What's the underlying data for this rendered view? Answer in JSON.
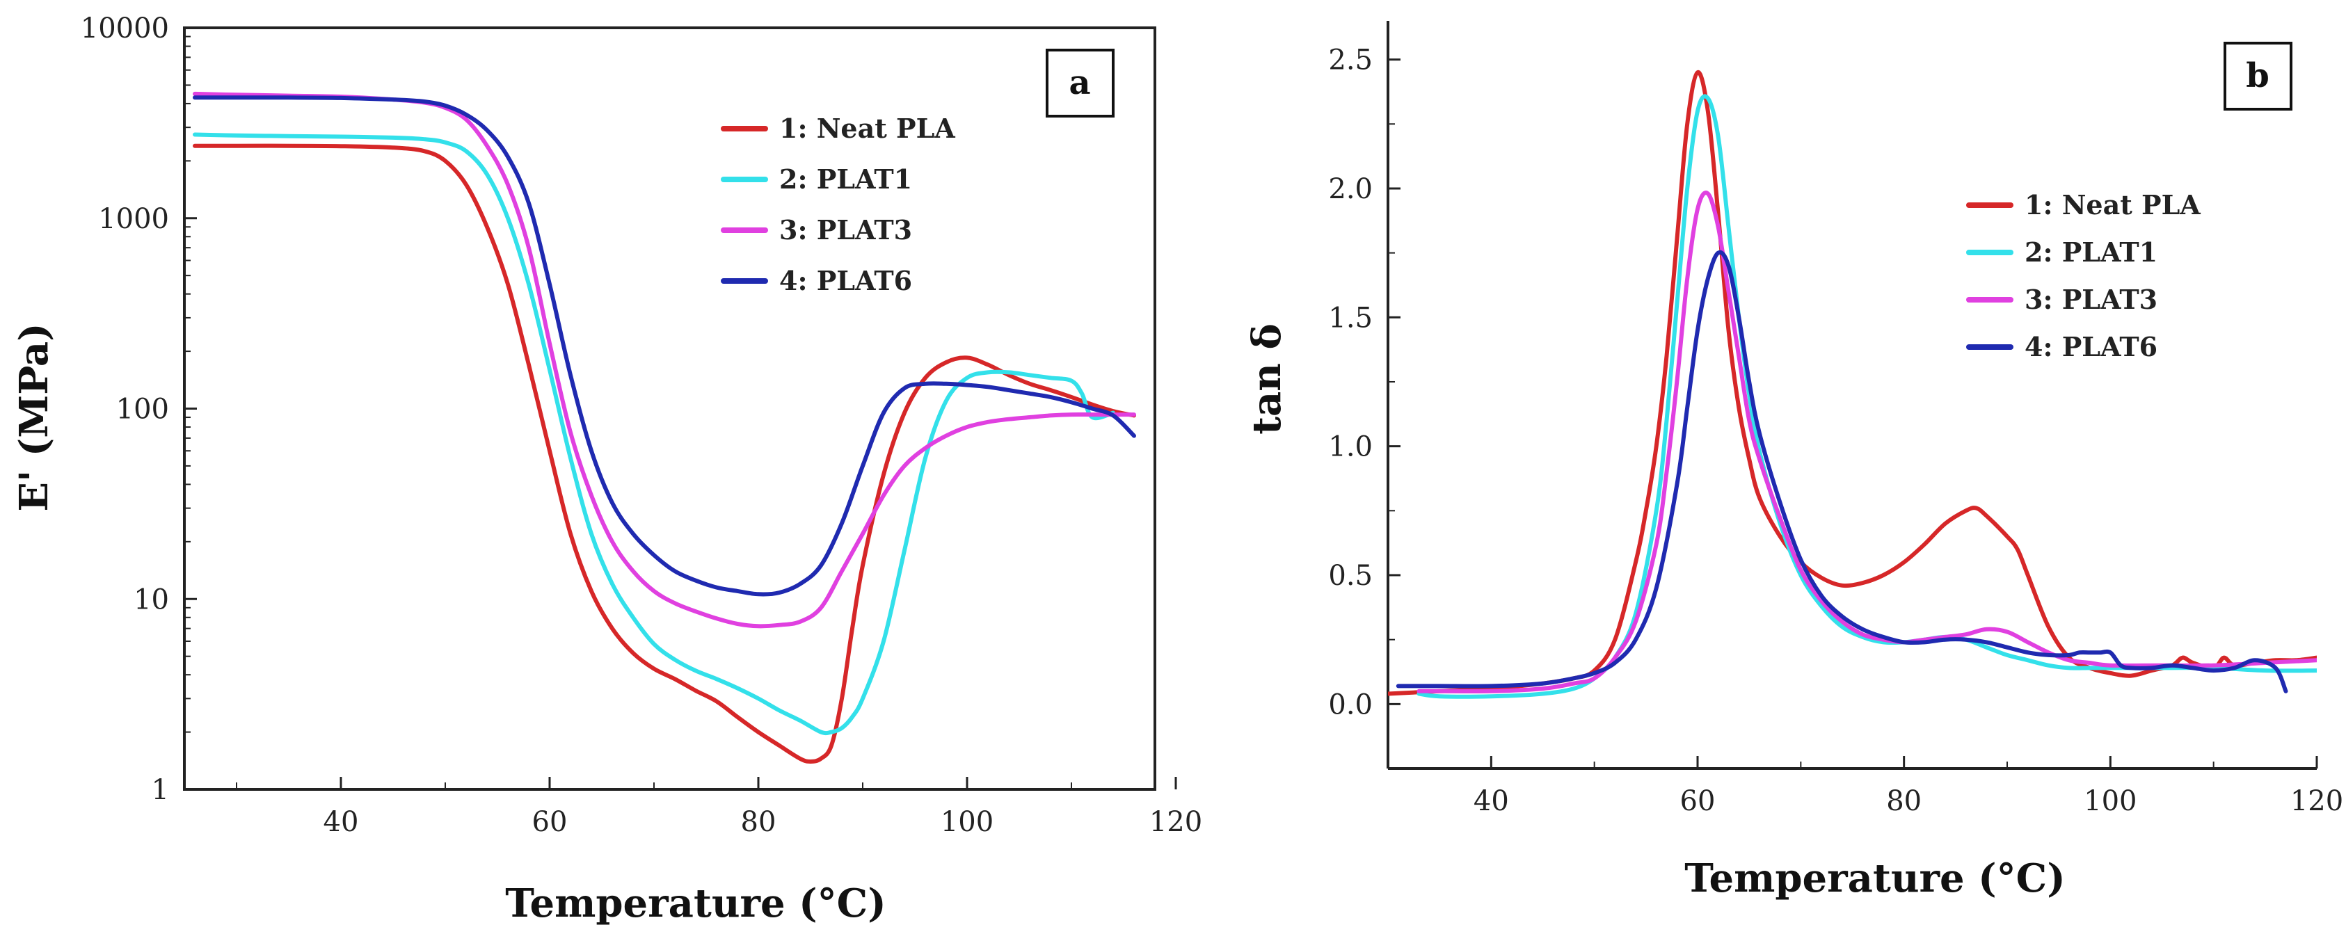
{
  "chart_data": [
    {
      "panel": "a",
      "type": "line",
      "yscale": "log",
      "xlabel": "Temperature (°C)",
      "ylabel": "E' (MPa)",
      "xlim": [
        25,
        118
      ],
      "ylim": [
        1,
        10000
      ],
      "xticks": [
        40,
        60,
        80,
        100,
        120
      ],
      "yticks": [
        1,
        10,
        100,
        1000,
        10000
      ],
      "yticklabels": [
        "1",
        "10",
        "100",
        "1000",
        "10000"
      ],
      "legend_position": "top-right",
      "series": [
        {
          "name": "1: Neat PLA",
          "color": "#d62728",
          "x": [
            26,
            30,
            35,
            40,
            45,
            48,
            50,
            52,
            54,
            56,
            58,
            60,
            62,
            64,
            66,
            68,
            70,
            72,
            74,
            76,
            78,
            80,
            82,
            84,
            85,
            86,
            87,
            88,
            89,
            90,
            92,
            94,
            96,
            98,
            100,
            102,
            104,
            106,
            108,
            110,
            112,
            114,
            116
          ],
          "y": [
            2400,
            2400,
            2400,
            2390,
            2350,
            2250,
            2000,
            1500,
            900,
            450,
            170,
            60,
            22,
            11,
            7,
            5.2,
            4.3,
            3.8,
            3.3,
            2.9,
            2.4,
            2.0,
            1.7,
            1.45,
            1.4,
            1.45,
            1.7,
            3,
            7,
            15,
            45,
            95,
            145,
            175,
            185,
            170,
            150,
            135,
            125,
            115,
            105,
            97,
            92
          ]
        },
        {
          "name": "2: PLAT1",
          "color": "#33e0ea",
          "x": [
            26,
            30,
            35,
            40,
            45,
            48,
            50,
            52,
            54,
            56,
            58,
            60,
            62,
            64,
            66,
            68,
            70,
            72,
            74,
            76,
            78,
            80,
            82,
            84,
            86,
            87,
            88,
            89,
            90,
            92,
            94,
            96,
            98,
            100,
            102,
            104,
            106,
            108,
            110,
            111,
            112,
            114
          ],
          "y": [
            2750,
            2720,
            2700,
            2680,
            2650,
            2600,
            2500,
            2250,
            1700,
            1000,
            450,
            160,
            55,
            22,
            12,
            8,
            5.8,
            4.8,
            4.2,
            3.8,
            3.4,
            3.0,
            2.6,
            2.3,
            2.0,
            2.0,
            2.1,
            2.4,
            3,
            6,
            18,
            55,
            110,
            145,
            155,
            155,
            150,
            145,
            140,
            120,
            90,
            95
          ]
        },
        {
          "name": "3: PLAT3",
          "color": "#e040e0",
          "x": [
            26,
            30,
            35,
            40,
            45,
            48,
            50,
            52,
            54,
            56,
            58,
            60,
            62,
            64,
            66,
            68,
            70,
            72,
            74,
            76,
            78,
            80,
            82,
            84,
            86,
            88,
            90,
            92,
            94,
            96,
            98,
            100,
            102,
            104,
            106,
            108,
            110,
            112,
            114,
            116
          ],
          "y": [
            4500,
            4450,
            4400,
            4350,
            4200,
            4050,
            3800,
            3300,
            2400,
            1500,
            700,
            220,
            75,
            35,
            20,
            14,
            11,
            9.5,
            8.6,
            7.9,
            7.4,
            7.2,
            7.3,
            7.6,
            9,
            14,
            22,
            35,
            50,
            62,
            72,
            80,
            85,
            88,
            90,
            92,
            93,
            93,
            93,
            93
          ]
        },
        {
          "name": "4: PLAT6",
          "color": "#1f2ab0",
          "x": [
            26,
            30,
            35,
            40,
            45,
            48,
            50,
            52,
            54,
            56,
            58,
            60,
            62,
            64,
            66,
            68,
            70,
            72,
            74,
            76,
            78,
            80,
            82,
            84,
            86,
            88,
            90,
            92,
            94,
            96,
            98,
            100,
            102,
            104,
            106,
            108,
            110,
            112,
            114,
            116
          ],
          "y": [
            4300,
            4300,
            4300,
            4280,
            4200,
            4100,
            3900,
            3500,
            2900,
            2100,
            1200,
            450,
            150,
            60,
            32,
            22,
            17,
            14,
            12.5,
            11.5,
            11,
            10.6,
            10.8,
            12,
            15,
            25,
            50,
            95,
            128,
            135,
            135,
            133,
            130,
            125,
            120,
            115,
            108,
            100,
            92,
            72
          ]
        }
      ]
    },
    {
      "panel": "b",
      "type": "line",
      "xlabel": "Temperature (°C)",
      "ylabel": "tan δ",
      "xlim": [
        30,
        120
      ],
      "ylim": [
        -0.25,
        2.65
      ],
      "xticks": [
        40,
        60,
        80,
        100,
        120
      ],
      "yticks": [
        0.0,
        0.5,
        1.0,
        1.5,
        2.0,
        2.5
      ],
      "yticklabels": [
        "0.0",
        "0.5",
        "1.0",
        "1.5",
        "2.0",
        "2.5"
      ],
      "legend_position": "top-right",
      "series": [
        {
          "name": "1: Neat PLA",
          "color": "#d62728",
          "x": [
            30,
            35,
            40,
            45,
            48,
            50,
            52,
            54,
            55,
            56,
            57,
            58,
            59,
            60,
            61,
            62,
            63,
            64,
            65,
            66,
            68,
            70,
            72,
            74,
            76,
            78,
            80,
            82,
            84,
            86,
            87,
            88,
            90,
            91,
            92,
            94,
            96,
            98,
            100,
            102,
            104,
            106,
            107,
            108,
            110,
            111,
            112,
            114,
            116,
            118,
            120
          ],
          "y": [
            0.04,
            0.05,
            0.06,
            0.08,
            0.1,
            0.13,
            0.25,
            0.55,
            0.75,
            1.0,
            1.35,
            1.8,
            2.25,
            2.45,
            2.3,
            1.9,
            1.45,
            1.15,
            0.95,
            0.8,
            0.65,
            0.55,
            0.49,
            0.46,
            0.47,
            0.5,
            0.55,
            0.62,
            0.7,
            0.75,
            0.76,
            0.73,
            0.65,
            0.6,
            0.5,
            0.3,
            0.18,
            0.14,
            0.12,
            0.11,
            0.13,
            0.15,
            0.18,
            0.16,
            0.14,
            0.18,
            0.15,
            0.16,
            0.17,
            0.17,
            0.18
          ]
        },
        {
          "name": "2: PLAT1",
          "color": "#33e0ea",
          "x": [
            33,
            35,
            40,
            45,
            48,
            50,
            52,
            54,
            56,
            57,
            58,
            59,
            60,
            61,
            62,
            63,
            64,
            65,
            66,
            68,
            70,
            72,
            74,
            76,
            78,
            80,
            82,
            84,
            86,
            88,
            90,
            92,
            94,
            96,
            98,
            100,
            105,
            110,
            115,
            120
          ],
          "y": [
            0.04,
            0.03,
            0.03,
            0.04,
            0.06,
            0.1,
            0.18,
            0.35,
            0.75,
            1.1,
            1.55,
            2.0,
            2.3,
            2.35,
            2.2,
            1.85,
            1.5,
            1.2,
            0.98,
            0.7,
            0.5,
            0.38,
            0.3,
            0.26,
            0.24,
            0.24,
            0.25,
            0.26,
            0.25,
            0.22,
            0.19,
            0.17,
            0.15,
            0.14,
            0.14,
            0.14,
            0.14,
            0.14,
            0.13,
            0.13
          ]
        },
        {
          "name": "3: PLAT3",
          "color": "#e040e0",
          "x": [
            33,
            35,
            40,
            45,
            48,
            50,
            52,
            54,
            56,
            57,
            58,
            59,
            60,
            61,
            62,
            63,
            64,
            65,
            66,
            68,
            70,
            72,
            74,
            76,
            78,
            80,
            82,
            84,
            86,
            88,
            90,
            92,
            94,
            96,
            98,
            100,
            105,
            110,
            115,
            120
          ],
          "y": [
            0.05,
            0.05,
            0.05,
            0.06,
            0.08,
            0.1,
            0.18,
            0.32,
            0.62,
            0.9,
            1.25,
            1.65,
            1.92,
            1.98,
            1.85,
            1.6,
            1.35,
            1.1,
            0.95,
            0.72,
            0.52,
            0.4,
            0.32,
            0.27,
            0.25,
            0.24,
            0.25,
            0.26,
            0.27,
            0.29,
            0.28,
            0.24,
            0.2,
            0.17,
            0.16,
            0.15,
            0.15,
            0.15,
            0.16,
            0.17
          ]
        },
        {
          "name": "4: PLAT6",
          "color": "#1f2ab0",
          "x": [
            31,
            35,
            40,
            45,
            48,
            50,
            52,
            54,
            56,
            58,
            59,
            60,
            61,
            62,
            63,
            64,
            65,
            66,
            68,
            70,
            72,
            74,
            76,
            78,
            80,
            82,
            84,
            86,
            88,
            90,
            92,
            94,
            96,
            97,
            98,
            99,
            100,
            101,
            102,
            104,
            106,
            108,
            110,
            112,
            114,
            116,
            117
          ],
          "y": [
            0.07,
            0.07,
            0.07,
            0.08,
            0.1,
            0.12,
            0.16,
            0.25,
            0.45,
            0.85,
            1.15,
            1.45,
            1.65,
            1.75,
            1.7,
            1.5,
            1.25,
            1.05,
            0.78,
            0.56,
            0.42,
            0.34,
            0.29,
            0.26,
            0.24,
            0.24,
            0.25,
            0.25,
            0.24,
            0.22,
            0.2,
            0.19,
            0.19,
            0.2,
            0.2,
            0.2,
            0.2,
            0.15,
            0.14,
            0.14,
            0.15,
            0.14,
            0.13,
            0.14,
            0.17,
            0.14,
            0.05
          ]
        }
      ]
    }
  ]
}
